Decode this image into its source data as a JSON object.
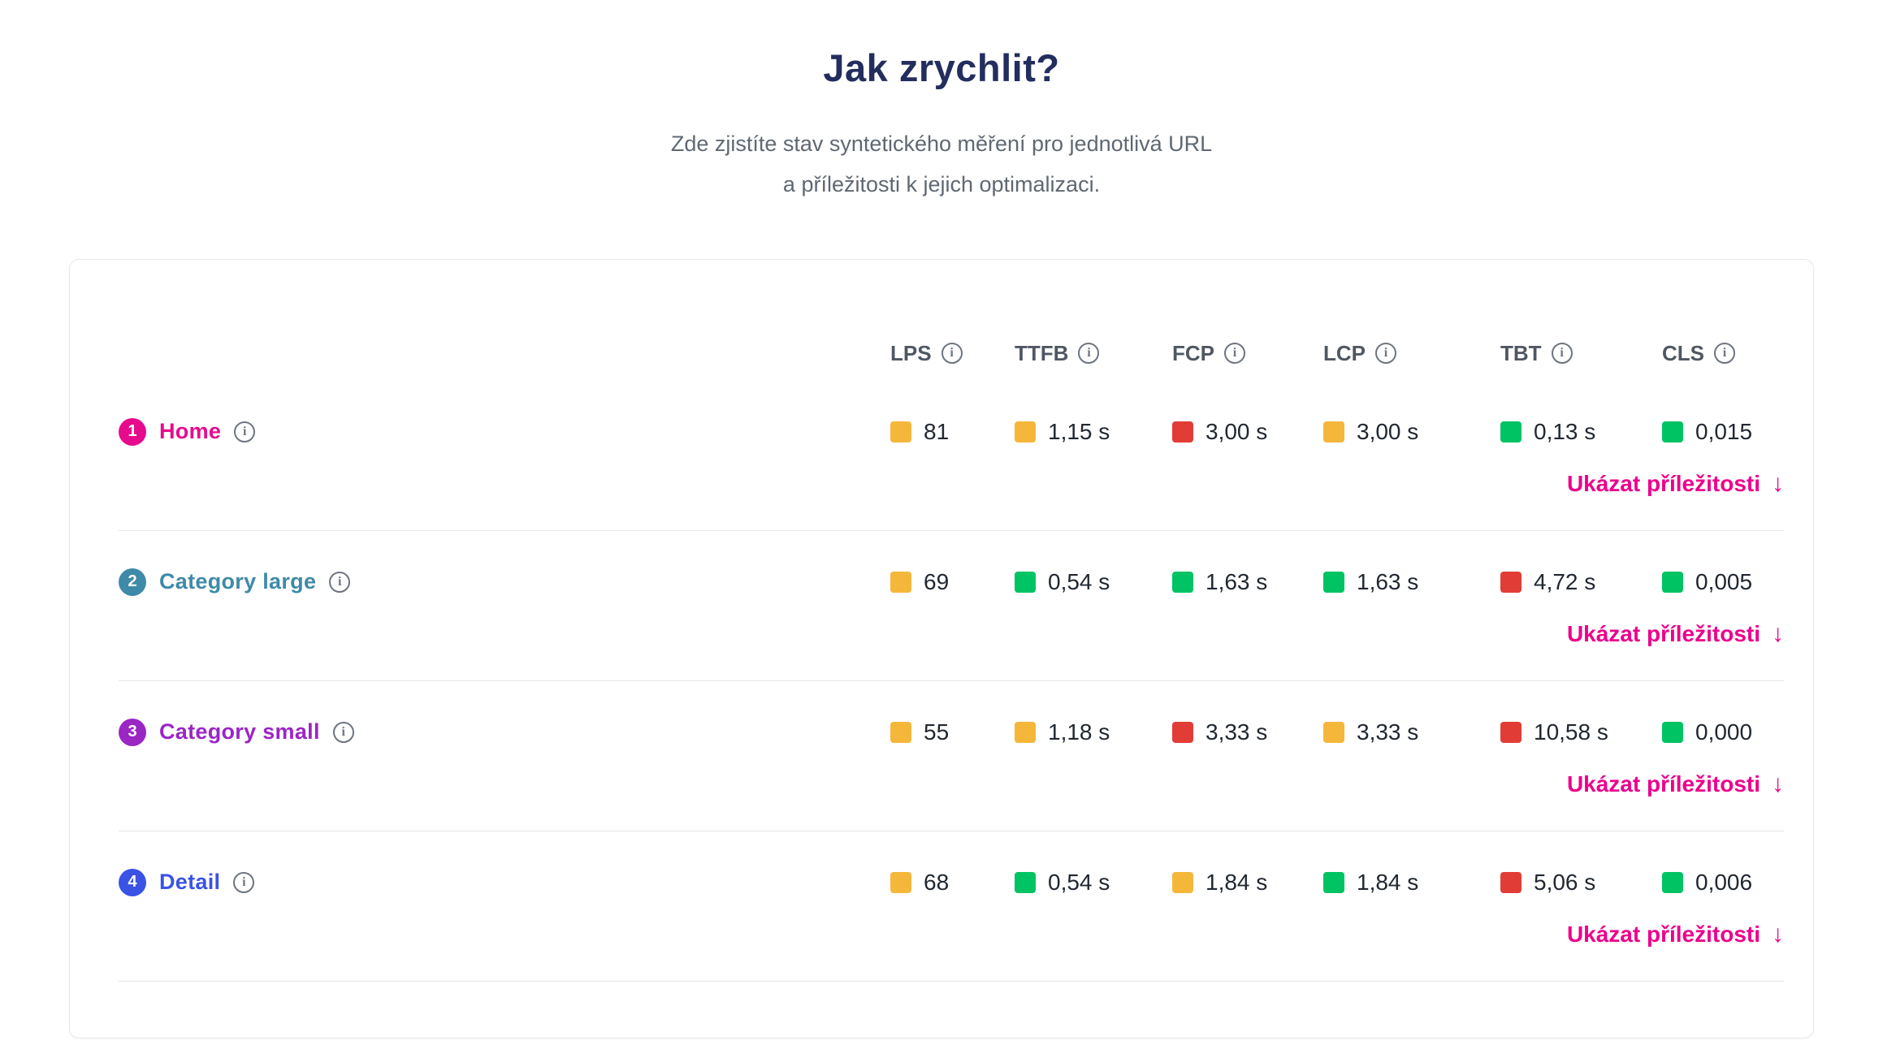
{
  "page": {
    "title": "Jak zrychlit?",
    "subtitle": [
      "Zde zjistíte stav syntetického měření pro jednotlivá URL",
      "a příležitosti k jejich optimalizaci."
    ]
  },
  "colors": {
    "good": "#00c364",
    "warn": "#f5b73a",
    "bad": "#e23c36"
  },
  "table": {
    "columns": [
      "LPS",
      "TTFB",
      "FCP",
      "LCP",
      "TBT",
      "CLS"
    ],
    "opportunities_label": "Ukázat příležitosti",
    "arrow": "↓",
    "rows": [
      {
        "number": "1",
        "label": "Home",
        "color": "#e60a8c",
        "metrics": [
          {
            "value": "81",
            "status": "warn"
          },
          {
            "value": "1,15 s",
            "status": "warn"
          },
          {
            "value": "3,00 s",
            "status": "bad"
          },
          {
            "value": "3,00 s",
            "status": "warn"
          },
          {
            "value": "0,13 s",
            "status": "good"
          },
          {
            "value": "0,015",
            "status": "good"
          }
        ]
      },
      {
        "number": "2",
        "label": "Category large",
        "color": "#3e8aa8",
        "metrics": [
          {
            "value": "69",
            "status": "warn"
          },
          {
            "value": "0,54 s",
            "status": "good"
          },
          {
            "value": "1,63 s",
            "status": "good"
          },
          {
            "value": "1,63 s",
            "status": "good"
          },
          {
            "value": "4,72 s",
            "status": "bad"
          },
          {
            "value": "0,005",
            "status": "good"
          }
        ]
      },
      {
        "number": "3",
        "label": "Category small",
        "color": "#9a26c4",
        "metrics": [
          {
            "value": "55",
            "status": "warn"
          },
          {
            "value": "1,18 s",
            "status": "warn"
          },
          {
            "value": "3,33 s",
            "status": "bad"
          },
          {
            "value": "3,33 s",
            "status": "warn"
          },
          {
            "value": "10,58 s",
            "status": "bad"
          },
          {
            "value": "0,000",
            "status": "good"
          }
        ]
      },
      {
        "number": "4",
        "label": "Detail",
        "color": "#3a53e4",
        "metrics": [
          {
            "value": "68",
            "status": "warn"
          },
          {
            "value": "0,54 s",
            "status": "good"
          },
          {
            "value": "1,84 s",
            "status": "warn"
          },
          {
            "value": "1,84 s",
            "status": "good"
          },
          {
            "value": "5,06 s",
            "status": "bad"
          },
          {
            "value": "0,006",
            "status": "good"
          }
        ]
      }
    ]
  }
}
